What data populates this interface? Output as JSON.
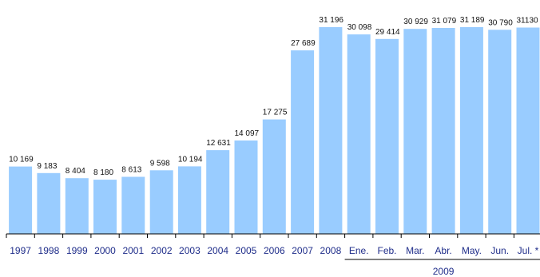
{
  "colors": {
    "bar": "#99ccff",
    "axis": "#000000",
    "tick_text": "#1f2d8a",
    "value_text": "#111111"
  },
  "chart_data": {
    "type": "bar",
    "title": "",
    "xlabel": "",
    "ylabel": "",
    "ylim": [
      0,
      33000
    ],
    "grid": false,
    "legend": "none",
    "categories": [
      "1997",
      "1998",
      "1999",
      "2000",
      "2001",
      "2002",
      "2003",
      "2004",
      "2005",
      "2006",
      "2007",
      "2008",
      "Ene.",
      "Feb.",
      "Mar.",
      "Abr.",
      "May.",
      "Jun.",
      "Jul. *"
    ],
    "values": [
      10169,
      9183,
      8404,
      8180,
      8613,
      9598,
      10194,
      12631,
      14097,
      17275,
      27689,
      31196,
      30098,
      29414,
      30929,
      31079,
      31189,
      30790,
      31130
    ],
    "data_labels": [
      "10 169",
      "9 183",
      "8 404",
      "8 180",
      "8 613",
      "9 598",
      "10 194",
      "12 631",
      "14 097",
      "17 275",
      "27 689",
      "31 196",
      "30 098",
      "29 414",
      "30 929",
      "31 079",
      "31 189",
      "30 790",
      "31130"
    ],
    "groups": [
      {
        "label": "2009",
        "first_category": 12,
        "last_category": 18
      }
    ]
  }
}
